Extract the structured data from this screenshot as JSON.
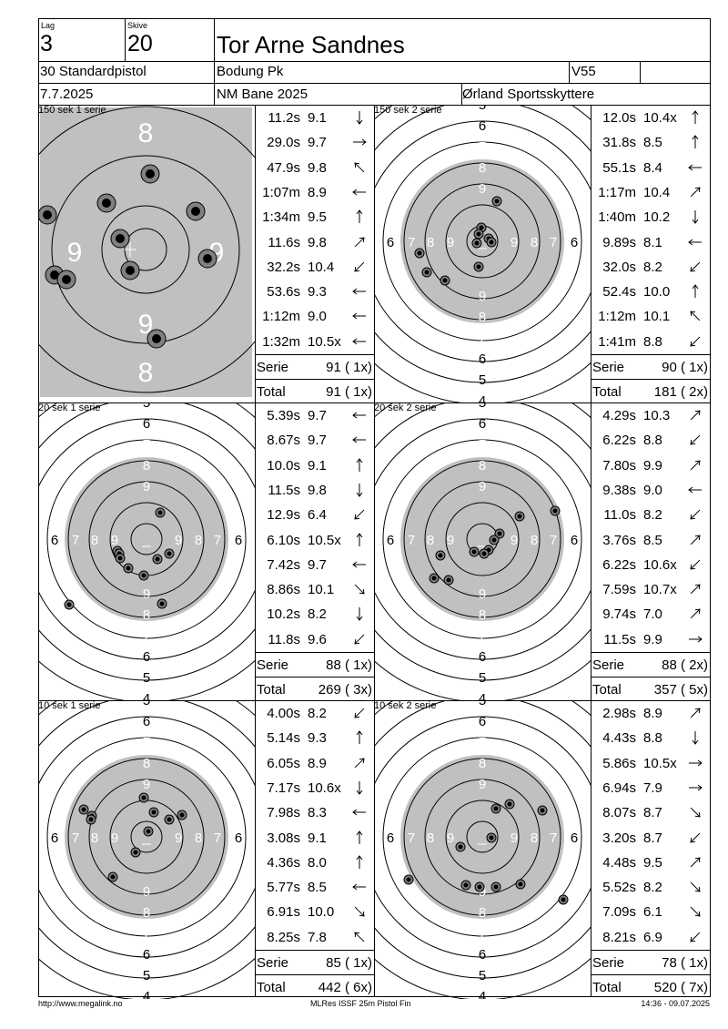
{
  "header": {
    "lag_label": "Lag",
    "lag_value": "3",
    "skive_label": "Skive",
    "skive_value": "20",
    "shooter_name": "Tor Arne Sandnes",
    "event": "30 Standardpistol",
    "club": "Bodung Pk",
    "class": "V55",
    "class_extra": "",
    "date": "7.7.2025",
    "competition": "NM Bane 2025",
    "organizer": "Ørland Sportsskyttere"
  },
  "series": [
    {
      "title": "150 sek 1 serie",
      "target": "zoom",
      "shots": [
        {
          "time": "11.2s",
          "score": "9.1",
          "arrow": "S"
        },
        {
          "time": "29.0s",
          "score": "9.7",
          "arrow": "E"
        },
        {
          "time": "47.9s",
          "score": "9.8",
          "arrow": "NW"
        },
        {
          "time": "1:07m",
          "score": "8.9",
          "arrow": "W"
        },
        {
          "time": "1:34m",
          "score": "9.5",
          "arrow": "N"
        },
        {
          "time": "11.6s",
          "score": "9.8",
          "arrow": "NE"
        },
        {
          "time": "32.2s",
          "score": "10.4",
          "arrow": "SW"
        },
        {
          "time": "53.6s",
          "score": "9.3",
          "arrow": "W"
        },
        {
          "time": "1:12m",
          "score": "9.0",
          "arrow": "W"
        },
        {
          "time": "1:32m",
          "score": "10.5x",
          "arrow": "W"
        }
      ],
      "serie_label": "Serie",
      "serie_value": "91 ( 1x)",
      "total_label": "Total",
      "total_value": "91 ( 1x)"
    },
    {
      "title": "150 sek 2 serie",
      "target": "full",
      "shots": [
        {
          "time": "12.0s",
          "score": "10.4x",
          "arrow": "N"
        },
        {
          "time": "31.8s",
          "score": "8.5",
          "arrow": "N"
        },
        {
          "time": "55.1s",
          "score": "8.4",
          "arrow": "W"
        },
        {
          "time": "1:17m",
          "score": "10.4",
          "arrow": "NE"
        },
        {
          "time": "1:40m",
          "score": "10.2",
          "arrow": "S"
        },
        {
          "time": "9.89s",
          "score": "8.1",
          "arrow": "W"
        },
        {
          "time": "32.0s",
          "score": "8.2",
          "arrow": "SW"
        },
        {
          "time": "52.4s",
          "score": "10.0",
          "arrow": "N"
        },
        {
          "time": "1:12m",
          "score": "10.1",
          "arrow": "NW"
        },
        {
          "time": "1:41m",
          "score": "8.8",
          "arrow": "SW"
        }
      ],
      "serie_label": "Serie",
      "serie_value": "90 ( 1x)",
      "total_label": "Total",
      "total_value": "181 ( 2x)"
    },
    {
      "title": "20 sek 1 serie",
      "target": "full",
      "shots": [
        {
          "time": "5.39s",
          "score": "9.7",
          "arrow": "W"
        },
        {
          "time": "8.67s",
          "score": "9.7",
          "arrow": "W"
        },
        {
          "time": "10.0s",
          "score": "9.1",
          "arrow": "N"
        },
        {
          "time": "11.5s",
          "score": "9.8",
          "arrow": "S"
        },
        {
          "time": "12.9s",
          "score": "6.4",
          "arrow": "SW"
        },
        {
          "time": "6.10s",
          "score": "10.5x",
          "arrow": "N"
        },
        {
          "time": "7.42s",
          "score": "9.7",
          "arrow": "W"
        },
        {
          "time": "8.86s",
          "score": "10.1",
          "arrow": "SE"
        },
        {
          "time": "10.2s",
          "score": "8.2",
          "arrow": "S"
        },
        {
          "time": "11.8s",
          "score": "9.6",
          "arrow": "SW"
        }
      ],
      "serie_label": "Serie",
      "serie_value": "88 ( 1x)",
      "total_label": "Total",
      "total_value": "269 ( 3x)"
    },
    {
      "title": "20 sek 2 serie",
      "target": "full",
      "shots": [
        {
          "time": "4.29s",
          "score": "10.3",
          "arrow": "NE"
        },
        {
          "time": "6.22s",
          "score": "8.8",
          "arrow": "SW"
        },
        {
          "time": "7.80s",
          "score": "9.9",
          "arrow": "NE"
        },
        {
          "time": "9.38s",
          "score": "9.0",
          "arrow": "W"
        },
        {
          "time": "11.0s",
          "score": "8.2",
          "arrow": "SW"
        },
        {
          "time": "3.76s",
          "score": "8.5",
          "arrow": "NE"
        },
        {
          "time": "6.22s",
          "score": "10.6x",
          "arrow": "SW"
        },
        {
          "time": "7.59s",
          "score": "10.7x",
          "arrow": "NE"
        },
        {
          "time": "9.74s",
          "score": "7.0",
          "arrow": "NE"
        },
        {
          "time": "11.5s",
          "score": "9.9",
          "arrow": "E"
        }
      ],
      "serie_label": "Serie",
      "serie_value": "88 ( 2x)",
      "total_label": "Total",
      "total_value": "357 ( 5x)"
    },
    {
      "title": "10 sek 1 serie",
      "target": "full",
      "shots": [
        {
          "time": "4.00s",
          "score": "8.2",
          "arrow": "SW"
        },
        {
          "time": "5.14s",
          "score": "9.3",
          "arrow": "N"
        },
        {
          "time": "6.05s",
          "score": "8.9",
          "arrow": "NE"
        },
        {
          "time": "7.17s",
          "score": "10.6x",
          "arrow": "S"
        },
        {
          "time": "7.98s",
          "score": "8.3",
          "arrow": "W"
        },
        {
          "time": "3.08s",
          "score": "9.1",
          "arrow": "N"
        },
        {
          "time": "4.36s",
          "score": "8.0",
          "arrow": "N"
        },
        {
          "time": "5.77s",
          "score": "8.5",
          "arrow": "W"
        },
        {
          "time": "6.91s",
          "score": "10.0",
          "arrow": "SE"
        },
        {
          "time": "8.25s",
          "score": "7.8",
          "arrow": "NW"
        }
      ],
      "serie_label": "Serie",
      "serie_value": "85 ( 1x)",
      "total_label": "Total",
      "total_value": "442 ( 6x)"
    },
    {
      "title": "10 sek 2 serie",
      "target": "full",
      "shots": [
        {
          "time": "2.98s",
          "score": "8.9",
          "arrow": "NE"
        },
        {
          "time": "4.43s",
          "score": "8.8",
          "arrow": "S"
        },
        {
          "time": "5.86s",
          "score": "10.5x",
          "arrow": "E"
        },
        {
          "time": "6.94s",
          "score": "7.9",
          "arrow": "E"
        },
        {
          "time": "8.07s",
          "score": "8.7",
          "arrow": "SE"
        },
        {
          "time": "3.20s",
          "score": "8.7",
          "arrow": "SW"
        },
        {
          "time": "4.48s",
          "score": "9.5",
          "arrow": "NE"
        },
        {
          "time": "5.52s",
          "score": "8.2",
          "arrow": "SE"
        },
        {
          "time": "7.09s",
          "score": "6.1",
          "arrow": "SE"
        },
        {
          "time": "8.21s",
          "score": "6.9",
          "arrow": "SW"
        }
      ],
      "serie_label": "Serie",
      "serie_value": "78 ( 1x)",
      "total_label": "Total",
      "total_value": "520 ( 7x)"
    }
  ],
  "full_target": {
    "ring_numbers_top": [
      "4",
      "5",
      "6",
      "7",
      "8",
      "9"
    ],
    "ring_numbers_bottom": [
      "9",
      "8",
      "7",
      "6",
      "5",
      "4"
    ],
    "ring_numbers_left": [
      "6",
      "7",
      "8",
      "9"
    ],
    "ring_numbers_right": [
      "9",
      "8",
      "7",
      "6"
    ]
  },
  "zoom_target": {
    "ring_numbers": [
      "8",
      "9",
      "9",
      "9",
      "8"
    ]
  },
  "colors": {
    "black_zone": "#c0c0c0",
    "zoom_background": "#c0c0c0",
    "ring_line": "#000000",
    "hit_fill": "#000000"
  },
  "footer": {
    "left": "http://www.megalink.no",
    "center": "MLRes ISSF 25m Pistol Fin",
    "right": "14:36 - 09.07.2025"
  }
}
